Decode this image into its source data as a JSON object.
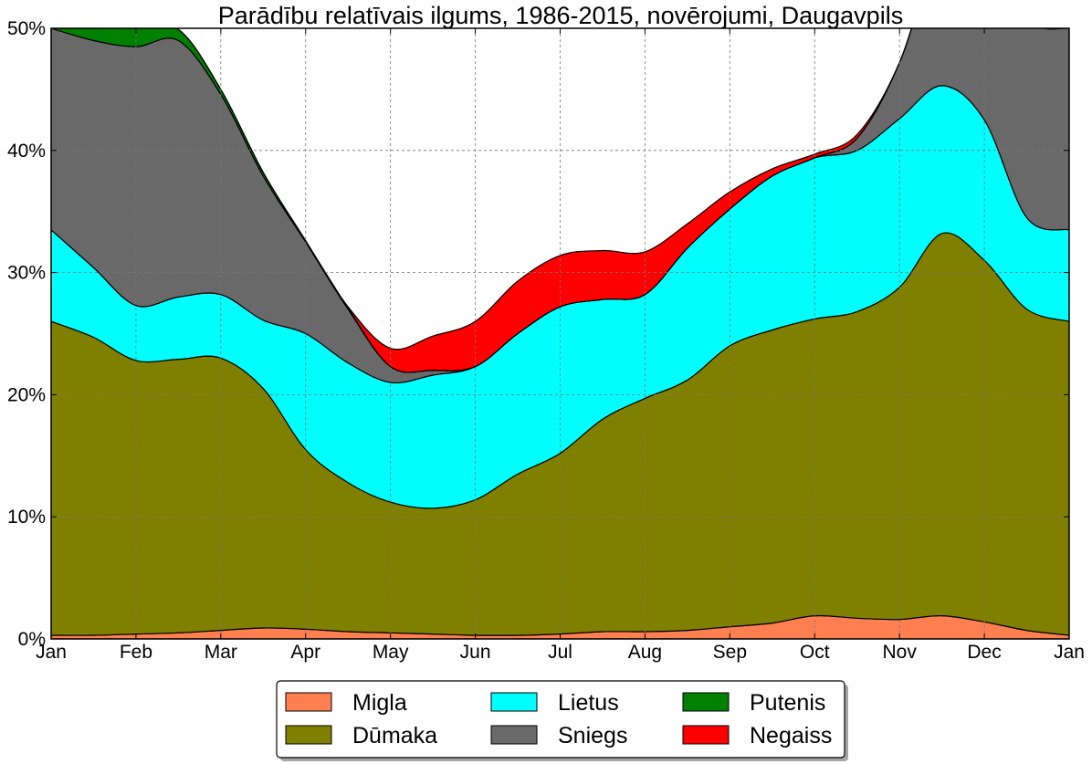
{
  "chart_data": {
    "type": "area",
    "stacked": true,
    "title": "Parādību relatīvais ilgums, 1986-2015, novērojumi, Daugavpils",
    "xlabel": "",
    "ylabel": "",
    "ylim": [
      0,
      50
    ],
    "y_ticks": [
      0,
      10,
      20,
      30,
      40,
      50
    ],
    "y_tick_labels": [
      "0%",
      "10%",
      "20%",
      "30%",
      "40%",
      "50%"
    ],
    "x_tick_labels": [
      "Jan",
      "Feb",
      "Mar",
      "Apr",
      "May",
      "Jun",
      "Jul",
      "Aug",
      "Sep",
      "Oct",
      "Nov",
      "Dec",
      "Jan"
    ],
    "x": [
      0,
      0.5,
      1,
      1.5,
      2,
      2.5,
      3,
      3.5,
      4,
      4.5,
      5,
      5.5,
      6,
      6.5,
      7,
      7.5,
      8,
      8.5,
      9,
      9.5,
      10,
      10.5,
      11,
      11.5,
      12
    ],
    "x_unit": "month index (0 = Jan, 12 = next Jan)",
    "grid": true,
    "legend": {
      "placement": "bottom-center",
      "columns": 3
    },
    "series": [
      {
        "name": "Migla",
        "color": "#ff7f50",
        "values": [
          0.3,
          0.3,
          0.4,
          0.5,
          0.7,
          0.9,
          0.8,
          0.6,
          0.5,
          0.4,
          0.3,
          0.3,
          0.4,
          0.6,
          0.6,
          0.7,
          1.0,
          1.3,
          1.9,
          1.7,
          1.6,
          1.9,
          1.4,
          0.7,
          0.3
        ]
      },
      {
        "name": "Dūmaka",
        "color": "#808000",
        "values": [
          25.7,
          24.4,
          22.4,
          22.4,
          22.3,
          19.6,
          14.7,
          12.2,
          10.7,
          10.3,
          11.1,
          13.2,
          14.8,
          17.4,
          19.1,
          20.5,
          23.0,
          24.0,
          24.3,
          25.1,
          27.2,
          31.3,
          29.6,
          26.3,
          25.7
        ]
      },
      {
        "name": "Lietus",
        "color": "#00ffff",
        "values": [
          7.5,
          5.7,
          4.5,
          5.1,
          5.2,
          5.6,
          9.5,
          9.8,
          9.8,
          10.9,
          10.9,
          11.5,
          12.0,
          9.8,
          8.5,
          10.8,
          11.2,
          12.6,
          13.2,
          13.2,
          13.8,
          12.1,
          11.5,
          7.5,
          7.5
        ]
      },
      {
        "name": "Sniegs",
        "color": "#696969",
        "values": [
          16.5,
          18.6,
          21.2,
          21.0,
          16.4,
          11.8,
          7.5,
          4.4,
          1.3,
          0.4,
          0,
          0,
          0,
          0,
          0,
          0,
          0,
          0,
          0,
          1.0,
          4.6,
          12.0,
          17.4,
          16.5,
          16.5
        ]
      },
      {
        "name": "Putenis",
        "color": "#008000",
        "values": [
          0.0,
          1.0,
          1.5,
          0.9,
          0.4,
          0.3,
          0.1,
          0.1,
          0,
          0,
          0,
          0,
          0,
          0,
          0,
          0,
          0,
          0,
          0,
          0,
          0,
          0,
          0,
          0,
          0.0
        ]
      },
      {
        "name": "Negaiss",
        "color": "#ff0000",
        "values": [
          0,
          0,
          0,
          0,
          0,
          0,
          0,
          0.1,
          1.5,
          2.8,
          3.7,
          4.3,
          4.2,
          4.0,
          3.5,
          2.0,
          1.4,
          0.6,
          0.3,
          0.3,
          0,
          0,
          0,
          0,
          0
        ]
      }
    ]
  },
  "legend": {
    "items": [
      {
        "label": "Migla",
        "color": "#ff7f50"
      },
      {
        "label": "Dūmaka",
        "color": "#808000"
      },
      {
        "label": "Lietus",
        "color": "#00ffff"
      },
      {
        "label": "Sniegs",
        "color": "#696969"
      },
      {
        "label": "Putenis",
        "color": "#008000"
      },
      {
        "label": "Negaiss",
        "color": "#ff0000"
      }
    ]
  }
}
